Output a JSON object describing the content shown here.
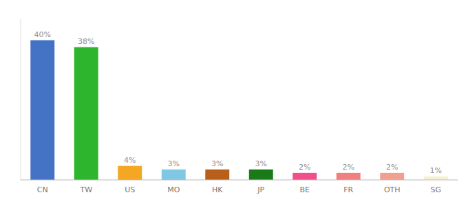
{
  "chart_data": {
    "type": "bar",
    "categories": [
      "CN",
      "TW",
      "US",
      "MO",
      "HK",
      "JP",
      "BE",
      "FR",
      "OTH",
      "SG"
    ],
    "values": [
      40,
      38,
      4,
      3,
      3,
      3,
      2,
      2,
      2,
      1
    ],
    "value_labels": [
      "40%",
      "38%",
      "4%",
      "3%",
      "3%",
      "3%",
      "2%",
      "2%",
      "2%",
      "1%"
    ],
    "colors": [
      "#4472c4",
      "#2db52d",
      "#f5a623",
      "#7ec8e3",
      "#b8601a",
      "#1a7a1a",
      "#f0508a",
      "#f08080",
      "#f0a090",
      "#f5f0d0"
    ],
    "ylim": [
      0,
      46
    ],
    "data_labels": true,
    "tick_labels": "x"
  }
}
